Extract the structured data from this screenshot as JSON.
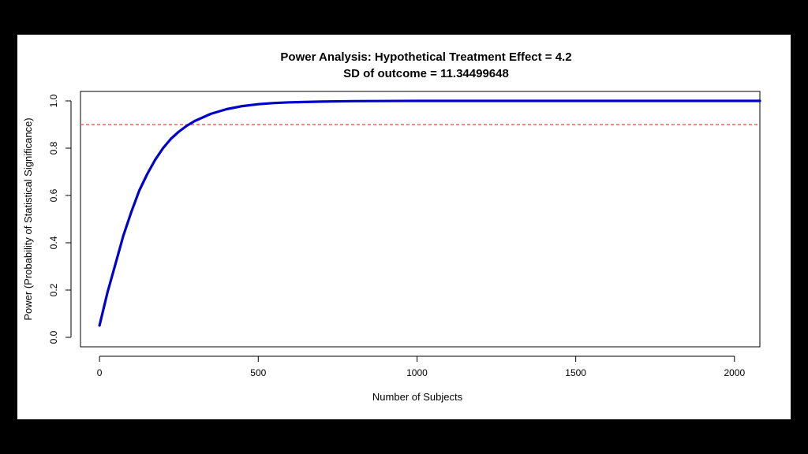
{
  "chart_data": {
    "type": "line",
    "title": "Power Analysis: Hypothetical Treatment Effect = 4.2",
    "subtitle": "SD of outcome = 11.34499648",
    "xlabel": "Number of Subjects",
    "ylabel": "Power (Probability of Statistical Significance)",
    "xlim": [
      -60,
      2080
    ],
    "ylim": [
      -0.04,
      1.04
    ],
    "x_ticks": [
      0,
      500,
      1000,
      1500,
      2000
    ],
    "x_tick_labels": [
      "0",
      "500",
      "1000",
      "1500",
      "2000"
    ],
    "y_ticks": [
      0.0,
      0.2,
      0.4,
      0.6,
      0.8,
      1.0
    ],
    "y_tick_labels": [
      "0.0",
      "0.2",
      "0.4",
      "0.6",
      "0.8",
      "1.0"
    ],
    "grid": false,
    "series": [
      {
        "color": "#0000cc",
        "x": [
          0,
          25,
          50,
          75,
          100,
          125,
          150,
          175,
          200,
          225,
          250,
          275,
          300,
          325,
          350,
          375,
          400,
          450,
          500,
          550,
          600,
          700,
          800,
          1000,
          1200,
          1500,
          1800,
          2080
        ],
        "y": [
          0.05,
          0.19,
          0.31,
          0.43,
          0.53,
          0.62,
          0.69,
          0.75,
          0.8,
          0.84,
          0.87,
          0.895,
          0.915,
          0.93,
          0.945,
          0.955,
          0.965,
          0.978,
          0.986,
          0.991,
          0.994,
          0.997,
          0.999,
          1.0,
          1.0,
          1.0,
          1.0,
          1.0
        ]
      }
    ],
    "reference_lines": [
      {
        "orientation": "horizontal",
        "y": 0.9,
        "color": "#e06666",
        "style": "dashed"
      }
    ]
  }
}
